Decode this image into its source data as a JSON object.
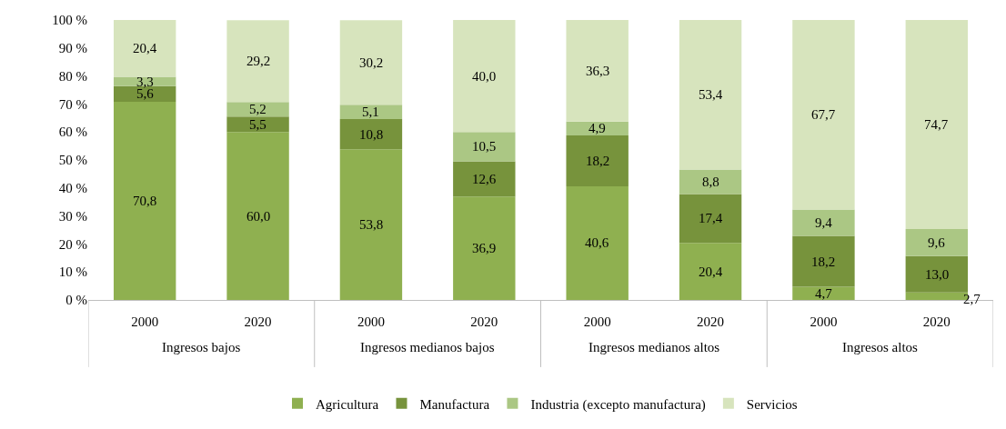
{
  "chart_data": {
    "type": "bar",
    "stacked": true,
    "categories": [
      "2000",
      "2020",
      "2000",
      "2020",
      "2000",
      "2020",
      "2000",
      "2020"
    ],
    "annotations": [
      "Ingresos bajos",
      "Ingresos medianos bajos",
      "Ingresos medianos altos",
      "Ingresos altos"
    ],
    "series": [
      {
        "name": "Agricultura",
        "color": "#8fb050",
        "values": [
          70.8,
          60.0,
          53.8,
          36.9,
          40.6,
          20.4,
          4.7,
          2.7
        ],
        "value_labels": [
          "70,8",
          "60,0",
          "53,8",
          "36,9",
          "40,6",
          "20,4",
          "4,7",
          "2,7"
        ]
      },
      {
        "name": "Manufactura",
        "color": "#77933c",
        "values": [
          5.6,
          5.5,
          10.8,
          12.6,
          18.2,
          17.4,
          18.2,
          13.0
        ],
        "value_labels": [
          "5,6",
          "5,5",
          "10,8",
          "12,6",
          "18,2",
          "17,4",
          "18,2",
          "13,0"
        ]
      },
      {
        "name": "Industria (excepto manufactura)",
        "color": "#abc784",
        "values": [
          3.3,
          5.2,
          5.1,
          10.5,
          4.9,
          8.8,
          9.4,
          9.6
        ],
        "value_labels": [
          "3,3",
          "5,2",
          "5,1",
          "10,5",
          "4,9",
          "8,8",
          "9,4",
          "9,6"
        ]
      },
      {
        "name": "Servicios",
        "color": "#d7e4bd",
        "values": [
          20.4,
          29.2,
          30.2,
          40.0,
          36.3,
          53.4,
          67.7,
          74.7
        ],
        "value_labels": [
          "20,4",
          "29,2",
          "30,2",
          "40,0",
          "36,3",
          "53,4",
          "67,7",
          "74,7"
        ]
      }
    ],
    "ylim": [
      0,
      100
    ],
    "yticks": [
      {
        "value": 0,
        "label": "0 %"
      },
      {
        "value": 10,
        "label": "10 %"
      },
      {
        "value": 20,
        "label": "20 %"
      },
      {
        "value": 30,
        "label": "30 %"
      },
      {
        "value": 40,
        "label": "40 %"
      },
      {
        "value": 50,
        "label": "50 %"
      },
      {
        "value": 60,
        "label": "60 %"
      },
      {
        "value": 70,
        "label": "70 %"
      },
      {
        "value": 80,
        "label": "80 %"
      },
      {
        "value": 90,
        "label": "90 %"
      },
      {
        "value": 100,
        "label": "100 %"
      }
    ],
    "legend": "bottom"
  }
}
